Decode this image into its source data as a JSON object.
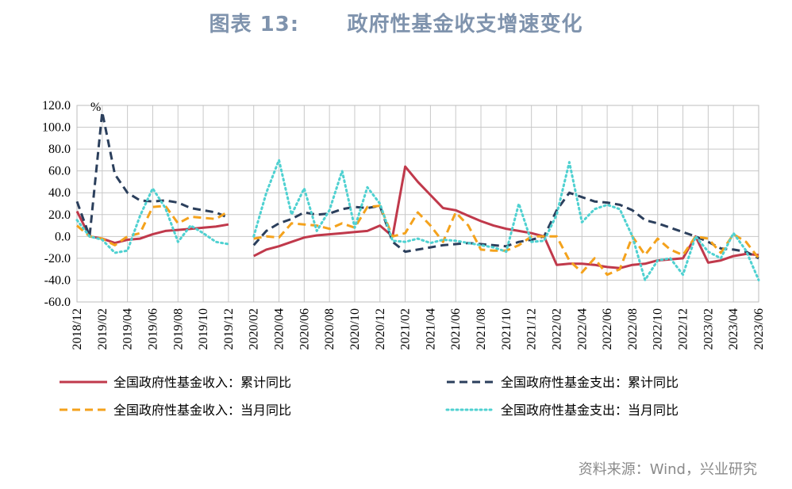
{
  "title": "图表 13:      政府性基金收支增速变化",
  "source": "资料来源：Wind，兴业研究",
  "chart_data": {
    "type": "line",
    "y_unit": "%",
    "ylim": [
      -60,
      120
    ],
    "yticks": [
      "120.0",
      "100.0",
      "80.0",
      "60.0",
      "40.0",
      "20.0",
      "0.0",
      "-20.0",
      "-40.0",
      "-60.0"
    ],
    "categories": [
      "2018/12",
      "2019/01",
      "2019/02",
      "2019/03",
      "2019/04",
      "2019/05",
      "2019/06",
      "2019/07",
      "2019/08",
      "2019/09",
      "2019/10",
      "2019/11",
      "2019/12",
      "2020/01",
      "2020/02",
      "2020/03",
      "2020/04",
      "2020/05",
      "2020/06",
      "2020/07",
      "2020/08",
      "2020/09",
      "2020/10",
      "2020/11",
      "2020/12",
      "2021/01",
      "2021/02",
      "2021/03",
      "2021/04",
      "2021/05",
      "2021/06",
      "2021/07",
      "2021/08",
      "2021/09",
      "2021/10",
      "2021/11",
      "2021/12",
      "2022/01",
      "2022/02",
      "2022/03",
      "2022/04",
      "2022/05",
      "2022/06",
      "2022/07",
      "2022/08",
      "2022/09",
      "2022/10",
      "2022/11",
      "2022/12",
      "2023/01",
      "2023/02",
      "2023/03",
      "2023/04",
      "2023/05",
      "2023/06"
    ],
    "xtick_labels": [
      "2018/12",
      "2019/02",
      "2019/04",
      "2019/06",
      "2019/08",
      "2019/10",
      "2019/12",
      "2020/02",
      "2020/04",
      "2020/06",
      "2020/08",
      "2020/10",
      "2020/12",
      "2021/02",
      "2021/04",
      "2021/06",
      "2021/08",
      "2021/10",
      "2021/12",
      "2022/02",
      "2022/04",
      "2022/06",
      "2022/08",
      "2022/10",
      "2022/12",
      "2023/02",
      "2023/04",
      "2023/06"
    ],
    "grid": true,
    "legend_position": "bottom",
    "series": [
      {
        "name": "全国政府性基金收入：累计同比",
        "color": "#c0394b",
        "style": "solid",
        "values": [
          23,
          0,
          -2,
          -6,
          -3,
          -2,
          2,
          5,
          6,
          7,
          8,
          9,
          11,
          null,
          -18,
          -12,
          -9,
          -5,
          -1,
          1,
          2,
          3,
          4,
          5,
          10,
          0,
          64,
          50,
          38,
          26,
          24,
          19,
          14,
          10,
          7,
          5,
          3,
          0,
          -26,
          -25,
          -25,
          -26,
          -28,
          -29,
          -26,
          -25,
          -22,
          -21,
          -20,
          0,
          -24,
          -22,
          -18,
          -16,
          -17
        ]
      },
      {
        "name": "全国政府性基金支出：累计同比",
        "color": "#2b3f5c",
        "style": "dashed",
        "values": [
          32,
          0,
          114,
          57,
          40,
          33,
          32,
          33,
          31,
          26,
          24,
          22,
          17,
          null,
          -8,
          5,
          12,
          16,
          22,
          20,
          21,
          25,
          27,
          26,
          28,
          -5,
          -14,
          -12,
          -10,
          -8,
          -7,
          -6,
          -7,
          -8,
          -9,
          -5,
          -3,
          0,
          24,
          40,
          36,
          32,
          31,
          29,
          24,
          15,
          12,
          8,
          4,
          0,
          -5,
          -11,
          -12,
          -14,
          -20
        ]
      },
      {
        "name": "全国政府性基金收入：当月同比",
        "color": "#f4a21c",
        "style": "dashed",
        "values": [
          10,
          0,
          -2,
          -8,
          0,
          3,
          27,
          28,
          12,
          18,
          17,
          16,
          23,
          null,
          -2,
          0,
          -1,
          12,
          11,
          10,
          7,
          12,
          8,
          27,
          28,
          0,
          3,
          22,
          10,
          -5,
          22,
          10,
          -12,
          -13,
          -13,
          -8,
          0,
          0,
          0,
          -22,
          -33,
          -20,
          -35,
          -30,
          0,
          -17,
          -2,
          -12,
          -17,
          0,
          -2,
          -15,
          2,
          -5,
          -20
        ]
      },
      {
        "name": "全国政府性基金支出：当月同比",
        "color": "#4fd1d1",
        "style": "dotted",
        "values": [
          15,
          0,
          -3,
          -15,
          -13,
          19,
          44,
          26,
          -5,
          10,
          3,
          -5,
          -7,
          null,
          0,
          40,
          70,
          20,
          44,
          5,
          24,
          60,
          8,
          45,
          30,
          -4,
          -5,
          -2,
          -6,
          -3,
          -4,
          -6,
          -8,
          -10,
          -14,
          30,
          -5,
          -4,
          20,
          68,
          13,
          25,
          29,
          25,
          0,
          -40,
          -22,
          -20,
          -35,
          0,
          -14,
          -20,
          3,
          -13,
          -40
        ]
      }
    ]
  }
}
